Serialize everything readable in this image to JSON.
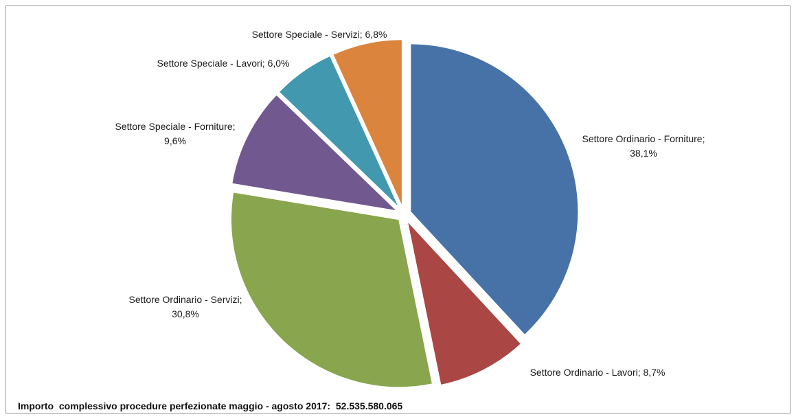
{
  "chart_data": {
    "type": "pie",
    "slices": [
      {
        "label": "Settore Ordinario - Forniture",
        "value_text": "38,1%",
        "value": 38.1,
        "color": "#4672A8"
      },
      {
        "label": "Settore Ordinario - Lavori",
        "value_text": "8,7%",
        "value": 8.7,
        "color": "#AA4643"
      },
      {
        "label": "Settore Ordinario - Servizi",
        "value_text": "30,8%",
        "value": 30.8,
        "color": "#89A54E"
      },
      {
        "label": "Settore Speciale - Forniture",
        "value_text": "9,6%",
        "value": 9.6,
        "color": "#71588F"
      },
      {
        "label": "Settore Speciale - Lavori",
        "value_text": "6,0%",
        "value": 6.0,
        "color": "#4198AF"
      },
      {
        "label": "Settore Speciale - Servizi",
        "value_text": "6,8%",
        "value": 6.8,
        "color": "#DB843D"
      }
    ]
  },
  "footer": "Importo  complessivo procedure perfezionate maggio - agosto 2017:  52.535.580.065"
}
